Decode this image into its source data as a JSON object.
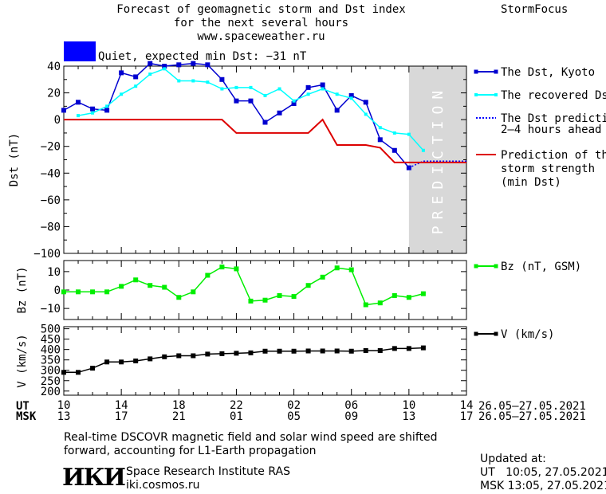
{
  "header": {
    "title_line1": "Forecast of geomagnetic storm and Dst index",
    "title_line2": "for the next several hours",
    "url": "www.spaceweather.ru",
    "brand": "StormFocus",
    "status_text": "Quiet, expected min Dst: −31 nT",
    "status_color": "#0000ff"
  },
  "colors": {
    "dst_kyoto": "#0000d0",
    "dst_recovered": "#00ffff",
    "dst_prediction": "#0000ff",
    "storm_strength": "#dd0000",
    "bz": "#00ee00",
    "v": "#000000",
    "prediction_band": "#d8d8d8"
  },
  "prediction_band_label": "PREDICTION",
  "legend": {
    "dst_kyoto": "The Dst, Kyoto",
    "dst_recovered": "The recovered Dst",
    "dst_prediction_1": "The Dst prediction",
    "dst_prediction_2": "2–4 hours ahead",
    "storm_1": "Prediction of the",
    "storm_2": "storm strength",
    "storm_3": "(min Dst)",
    "bz": "Bz (nT, GSM)",
    "v": "V (km/s)"
  },
  "time_axis": {
    "ut_label": "UT",
    "msk_label": "MSK",
    "ut_ticks": [
      "10",
      "14",
      "18",
      "22",
      "02",
      "06",
      "10",
      "14"
    ],
    "msk_ticks": [
      "13",
      "17",
      "21",
      "01",
      "05",
      "09",
      "13",
      "17"
    ],
    "ut_range": "26.05–27.05.2021",
    "msk_range": "26.05–27.05.2021",
    "range_hours": [
      10,
      38
    ],
    "prediction_start_hour": 34
  },
  "footer": {
    "note_line1": "Real-time DSCOVR magnetic field and solar wind speed are shifted",
    "note_line2": "forward, accounting for L1-Earth propagation",
    "logo": "ИКИ",
    "institute": "Space Research Institute RAS",
    "site": "iki.cosmos.ru",
    "updated_label": "Updated at:",
    "updated_ut": "UT   10:05, 27.05.2021",
    "updated_msk": "MSK 13:05, 27.05.2021"
  },
  "chart_data": [
    {
      "type": "line",
      "ylabel": "Dst (nT)",
      "ylim": [
        -100,
        40
      ],
      "yticks": [
        40,
        20,
        0,
        -20,
        -40,
        -60,
        -80,
        -100
      ],
      "series": [
        {
          "name": "The Dst, Kyoto",
          "x": [
            10,
            11,
            12,
            13,
            14,
            15,
            16,
            17,
            18,
            19,
            20,
            21,
            22,
            23,
            24,
            25,
            26,
            27,
            28,
            29,
            30,
            31,
            32,
            33,
            34
          ],
          "y": [
            7,
            13,
            8,
            7,
            35,
            32,
            42,
            40,
            41,
            42,
            41,
            30,
            14,
            14,
            -2,
            5,
            12,
            24,
            26,
            7,
            18,
            13,
            -15,
            -23,
            -36
          ]
        },
        {
          "name": "The recovered Dst",
          "x": [
            11,
            12,
            13,
            14,
            15,
            16,
            17,
            18,
            19,
            20,
            21,
            22,
            23,
            24,
            25,
            26,
            27,
            28,
            29,
            30,
            31,
            32,
            33,
            34,
            35
          ],
          "y": [
            3,
            5,
            10,
            19,
            25,
            34,
            38,
            29,
            29,
            28,
            23,
            24,
            24,
            18,
            23,
            14,
            19,
            23,
            19,
            16,
            4,
            -6,
            -10,
            -11,
            -23
          ]
        },
        {
          "name": "The Dst prediction",
          "x": [
            34,
            35,
            36,
            37,
            38
          ],
          "y": [
            -36,
            -31,
            -31,
            -31,
            -31
          ]
        },
        {
          "name": "Prediction of the storm strength",
          "x": [
            10,
            21,
            22,
            27,
            28,
            29,
            31,
            32,
            33,
            38
          ],
          "y": [
            0,
            0,
            -10,
            -10,
            0,
            -19,
            -19,
            -21,
            -32,
            -32
          ]
        }
      ]
    },
    {
      "type": "line",
      "ylabel": "Bz (nT)",
      "ylim": [
        -16,
        16
      ],
      "yticks": [
        10,
        0,
        -10
      ],
      "series": [
        {
          "name": "Bz (nT, GSM)",
          "x": [
            10,
            11,
            12,
            13,
            14,
            15,
            16,
            17,
            18,
            19,
            20,
            21,
            22,
            23,
            24,
            25,
            26,
            27,
            28,
            29,
            30,
            31,
            32,
            33,
            34,
            35
          ],
          "y": [
            -1,
            -1,
            -1,
            -1,
            2,
            5.5,
            2.5,
            1.5,
            -4,
            -1,
            8,
            12.5,
            11.5,
            -6,
            -5.5,
            -3,
            -3.5,
            2.5,
            7,
            12,
            11,
            -8,
            -7,
            -3,
            -4,
            -2
          ]
        }
      ]
    },
    {
      "type": "line",
      "ylabel": "V (km/s)",
      "ylim": [
        180,
        510
      ],
      "yticks": [
        500,
        450,
        400,
        350,
        300,
        250,
        200
      ],
      "series": [
        {
          "name": "V (km/s)",
          "x": [
            10,
            11,
            12,
            13,
            14,
            15,
            16,
            17,
            18,
            19,
            20,
            21,
            22,
            23,
            24,
            25,
            26,
            27,
            28,
            29,
            30,
            31,
            32,
            33,
            34,
            35
          ],
          "y": [
            290,
            290,
            310,
            340,
            340,
            345,
            355,
            365,
            370,
            370,
            378,
            380,
            382,
            384,
            392,
            392,
            392,
            393,
            393,
            393,
            392,
            395,
            395,
            405,
            405,
            408
          ]
        }
      ]
    }
  ]
}
